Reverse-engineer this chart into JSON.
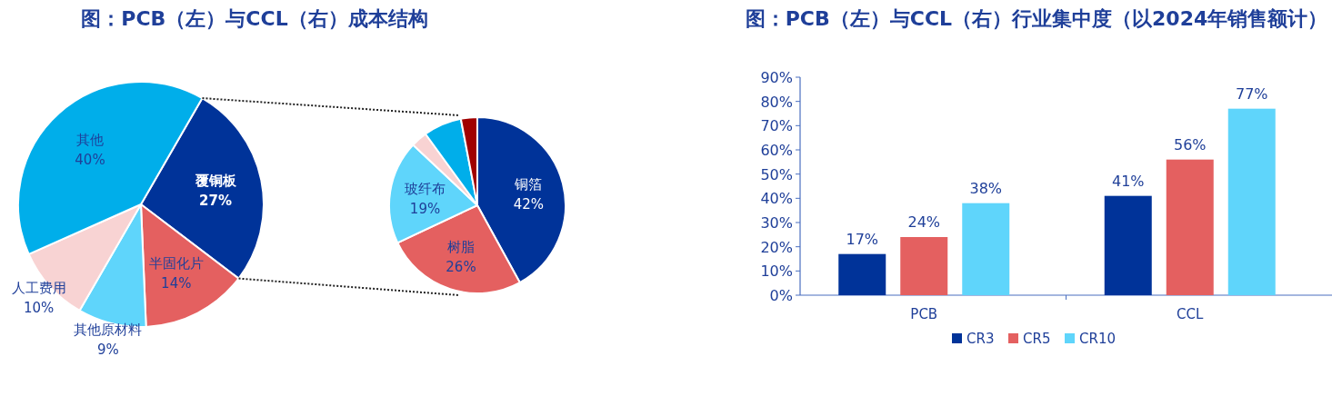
{
  "chart_data": [
    {
      "type": "pie",
      "title": "图：PCB（左）与CCL（右）成本结构",
      "categories": [
        "覆铜板",
        "半固化片",
        "其他原材料",
        "人工费用",
        "其他"
      ],
      "values": [
        27,
        14,
        9,
        10,
        40
      ],
      "colors": [
        "#003399",
        "#e46060",
        "#5fd5fb",
        "#f8d3d3",
        "#00aeea"
      ],
      "value_labels": [
        "27%",
        "14%",
        "9%",
        "10%",
        "40%"
      ]
    },
    {
      "type": "pie",
      "categories": [
        "铜箔",
        "树脂",
        "玻纤布",
        null,
        null,
        null
      ],
      "values": [
        42,
        26,
        19,
        3,
        7,
        3
      ],
      "colors": [
        "#003399",
        "#e46060",
        "#5fd5fb",
        "#f8d3d3",
        "#00aeea",
        "#a00000"
      ],
      "value_labels": [
        "42%",
        "26%",
        "19%",
        null,
        null,
        null
      ]
    },
    {
      "type": "bar",
      "title": "图：PCB（左）与CCL（右）行业集中度（以2024年销售额计）",
      "categories": [
        "PCB",
        "CCL"
      ],
      "series": [
        {
          "name": "CR3",
          "color": "#003399",
          "values": [
            17,
            41
          ],
          "value_labels": [
            "17%",
            "41%"
          ]
        },
        {
          "name": "CR5",
          "color": "#e46060",
          "values": [
            24,
            56
          ],
          "value_labels": [
            "24%",
            "56%"
          ]
        },
        {
          "name": "CR10",
          "color": "#5fd5fb",
          "values": [
            38,
            77
          ],
          "value_labels": [
            "38%",
            "77%"
          ]
        }
      ],
      "ylim": [
        0,
        90
      ],
      "yticks": [
        {
          "value": 0,
          "label": "0%"
        },
        {
          "value": 10,
          "label": "10%"
        },
        {
          "value": 20,
          "label": "20%"
        },
        {
          "value": 30,
          "label": "30%"
        },
        {
          "value": 40,
          "label": "40%"
        },
        {
          "value": 50,
          "label": "50%"
        },
        {
          "value": 60,
          "label": "60%"
        },
        {
          "value": 70,
          "label": "70%"
        },
        {
          "value": 80,
          "label": "80%"
        },
        {
          "value": 90,
          "label": "90%"
        }
      ],
      "legend": "bottom"
    }
  ]
}
